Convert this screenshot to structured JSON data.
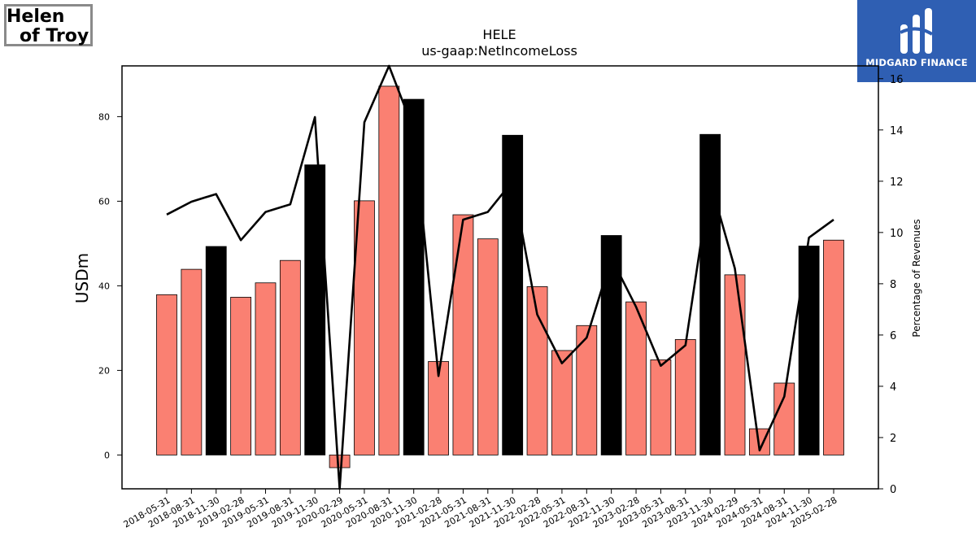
{
  "logos": {
    "left": {
      "line1": "Helen",
      "line2": "of Troy"
    },
    "right": {
      "name": "MIDGARD FINANCE"
    }
  },
  "chart_data": {
    "type": "bar",
    "title": "HELE",
    "subtitle": "us-gaap:NetIncomeLoss",
    "ylabel": "USDm",
    "y2label": "Percentage of Revenues",
    "ylim": [
      -8,
      92
    ],
    "y2lim": [
      0,
      16.5
    ],
    "yticks": [
      0,
      20,
      40,
      60,
      80
    ],
    "y2ticks": [
      0,
      2,
      4,
      6,
      8,
      10,
      12,
      14,
      16
    ],
    "colors": {
      "quarter": "#fa8072",
      "fiscal_year_end": "#000000",
      "line": "#000000"
    },
    "categories": [
      "2018-05-31",
      "2018-08-31",
      "2018-11-30",
      "2019-02-28",
      "2019-05-31",
      "2019-08-31",
      "2019-11-30",
      "2020-02-29",
      "2020-05-31",
      "2020-08-31",
      "2020-11-30",
      "2021-02-28",
      "2021-05-31",
      "2021-08-31",
      "2021-11-30",
      "2022-02-28",
      "2022-05-31",
      "2022-08-31",
      "2022-11-30",
      "2023-02-28",
      "2023-05-31",
      "2023-08-31",
      "2023-11-30",
      "2024-02-29",
      "2024-05-31",
      "2024-08-31",
      "2024-11-30",
      "2025-02-28"
    ],
    "series": [
      {
        "type": "bar",
        "values": [
          37.9,
          43.9,
          49.3,
          37.3,
          40.7,
          46.0,
          68.6,
          -3.0,
          60.1,
          87.2,
          84.1,
          22.1,
          56.8,
          51.1,
          75.6,
          39.8,
          24.7,
          30.6,
          51.9,
          36.2,
          22.5,
          27.3,
          75.8,
          42.6,
          6.2,
          17.0,
          49.4,
          50.8
        ],
        "highlight": [
          false,
          false,
          true,
          false,
          false,
          false,
          true,
          false,
          false,
          false,
          true,
          false,
          false,
          false,
          true,
          false,
          false,
          false,
          true,
          false,
          false,
          false,
          true,
          false,
          false,
          false,
          true,
          false
        ]
      },
      {
        "type": "line",
        "axis": "secondary",
        "values": [
          10.7,
          11.2,
          11.5,
          9.7,
          10.8,
          11.1,
          14.5,
          0.0,
          14.3,
          16.5,
          14.0,
          4.4,
          10.5,
          10.8,
          12.0,
          6.8,
          4.9,
          5.9,
          9.0,
          7.1,
          4.8,
          5.6,
          12.0,
          8.6,
          1.5,
          3.6,
          9.8,
          10.5
        ]
      }
    ]
  }
}
